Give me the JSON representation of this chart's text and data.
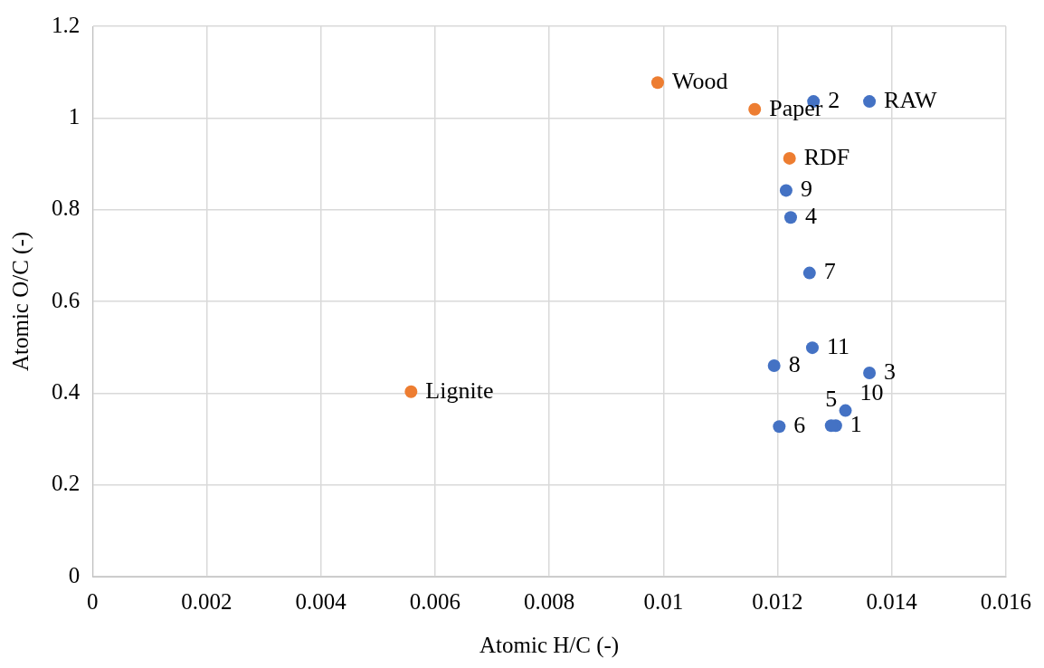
{
  "chart_data": {
    "type": "scatter",
    "xlabel": "Atomic H/C (-)",
    "ylabel": "Atomic O/C (-)",
    "xlim": [
      0,
      0.016
    ],
    "xticks": [
      0,
      0.002,
      0.004,
      0.006,
      0.008,
      0.01,
      0.012,
      0.014,
      0.016
    ],
    "ylim": [
      0,
      1.2
    ],
    "yticks": [
      0,
      0.2,
      0.4,
      0.6,
      0.8,
      1,
      1.2
    ],
    "grid": true,
    "marker": "circle",
    "legend": false,
    "series": [
      {
        "color": "#4472c4",
        "x": [
          0.01302,
          0.01263,
          0.01361,
          0.01223,
          0.01294,
          0.01203,
          0.01256,
          0.01194,
          0.01215,
          0.01319,
          0.01261,
          0.01361
        ],
        "values": [
          0.329,
          1.036,
          0.444,
          0.783,
          0.329,
          0.327,
          0.662,
          0.46,
          0.842,
          0.362,
          0.499,
          1.036
        ]
      },
      {
        "color": "#ed7d31",
        "x": [
          0.0099,
          0.0116,
          0.01221,
          0.00558
        ],
        "values": [
          1.077,
          1.019,
          0.912,
          0.403
        ]
      }
    ],
    "annotations": [
      {
        "text": "1",
        "x": 0.01302,
        "y": 0.329
      },
      {
        "text": "2",
        "x": 0.01263,
        "y": 1.036
      },
      {
        "text": "3",
        "x": 0.01361,
        "y": 0.444
      },
      {
        "text": "4",
        "x": 0.01223,
        "y": 0.783
      },
      {
        "text": "5",
        "x": 0.01294,
        "y": 0.329
      },
      {
        "text": "6",
        "x": 0.01203,
        "y": 0.327
      },
      {
        "text": "7",
        "x": 0.01256,
        "y": 0.662
      },
      {
        "text": "8",
        "x": 0.01194,
        "y": 0.46
      },
      {
        "text": "9",
        "x": 0.01215,
        "y": 0.842
      },
      {
        "text": "10",
        "x": 0.01319,
        "y": 0.362
      },
      {
        "text": "11",
        "x": 0.01261,
        "y": 0.499
      },
      {
        "text": "RAW",
        "x": 0.01361,
        "y": 1.036
      },
      {
        "text": "Wood",
        "x": 0.0099,
        "y": 1.077
      },
      {
        "text": "Paper",
        "x": 0.0116,
        "y": 1.019
      },
      {
        "text": "RDF",
        "x": 0.01221,
        "y": 0.912
      },
      {
        "text": "Lignite",
        "x": 0.00558,
        "y": 0.403
      }
    ]
  }
}
